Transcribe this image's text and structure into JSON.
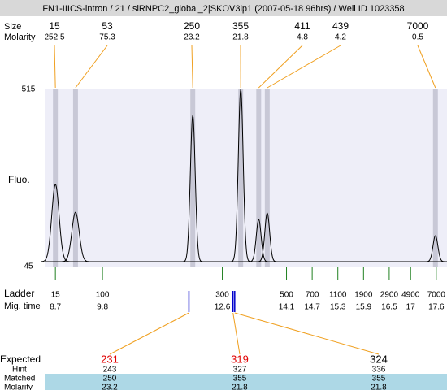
{
  "chart_data": {
    "type": "electropherogram",
    "title": "FN1-IIICS-intron / 21 / siRNPC2_global_2|SKOV3ip1 (2007-05-18 96hrs) / Well ID 1023358",
    "peak_row_labels": [
      "Size",
      "Molarity"
    ],
    "y_label": "Fluo.",
    "ylim": [
      45,
      515
    ],
    "yticks": [
      45,
      515
    ],
    "xlim": [
      8.45,
      17.85
    ],
    "peaks": {
      "size": [
        15,
        53,
        250,
        355,
        411,
        439,
        7000
      ],
      "molarity": [
        252.5,
        75.3,
        23.2,
        21.8,
        4.8,
        4.2,
        0.5
      ],
      "mig_time": [
        8.7,
        9.17,
        11.91,
        13.03,
        13.45,
        13.65,
        17.58
      ],
      "fluorescence": [
        263,
        189,
        446,
        515,
        170,
        187,
        127
      ]
    },
    "ladder": {
      "label": "Ladder",
      "time_label": "Mig. time",
      "sizes": [
        15,
        100,
        300,
        500,
        700,
        1100,
        1900,
        2900,
        4900,
        7000
      ],
      "mig_times": [
        8.7,
        9.8,
        12.6,
        14.1,
        14.7,
        15.3,
        15.9,
        16.5,
        17,
        17.6
      ]
    },
    "expected": {
      "label": "Expected",
      "values": [
        231,
        319,
        324
      ],
      "colors": [
        "#e00000",
        "#e00000",
        "#000000"
      ],
      "mig_times": [
        11.82,
        12.85,
        12.89
      ],
      "row_labels": [
        "Hint",
        "Matched",
        "Molarity"
      ],
      "hint": [
        243,
        327,
        336
      ],
      "matched": [
        250,
        355,
        355
      ],
      "molarity": [
        23.2,
        21.8,
        21.8
      ]
    }
  }
}
